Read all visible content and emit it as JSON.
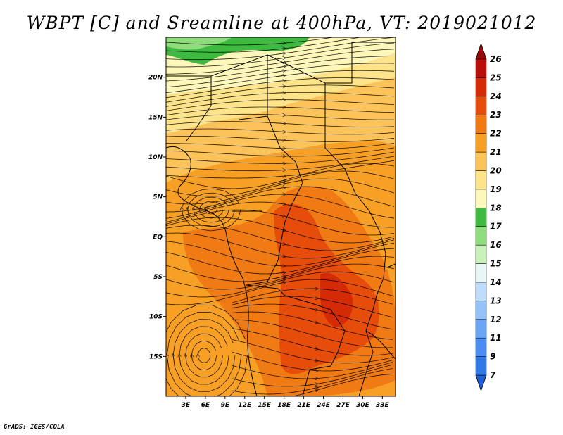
{
  "title": "WBPT [C] and Sreamline at 400hPa, VT: 2019021012",
  "credit": "GrADS: IGES/COLA",
  "map": {
    "lat_labels": [
      "20N",
      "15N",
      "10N",
      "5N",
      "EQ",
      "5S",
      "10S",
      "15S"
    ],
    "lon_labels": [
      "3E",
      "6E",
      "9E",
      "12E",
      "15E",
      "18E",
      "21E",
      "24E",
      "27E",
      "30E",
      "33E"
    ],
    "lon_range": [
      0,
      35
    ],
    "lat_range": [
      -20,
      25
    ]
  },
  "colorbar": {
    "levels": [
      "7",
      "9",
      "11",
      "12",
      "13",
      "14",
      "15",
      "16",
      "17",
      "18",
      "19",
      "20",
      "21",
      "22",
      "23",
      "24",
      "25",
      "26"
    ],
    "colors": [
      "#1f60d6",
      "#2f78e6",
      "#4c8ef0",
      "#6aa6f5",
      "#93c1f8",
      "#bfdcfb",
      "#e8f6f6",
      "#c8f0b8",
      "#8fdc7c",
      "#3dba3f",
      "#fdf7ba",
      "#fde48a",
      "#fbc35a",
      "#f7a025",
      "#f07a14",
      "#e64c0a",
      "#d42a06",
      "#b81008",
      "#9a0a0a"
    ]
  }
}
